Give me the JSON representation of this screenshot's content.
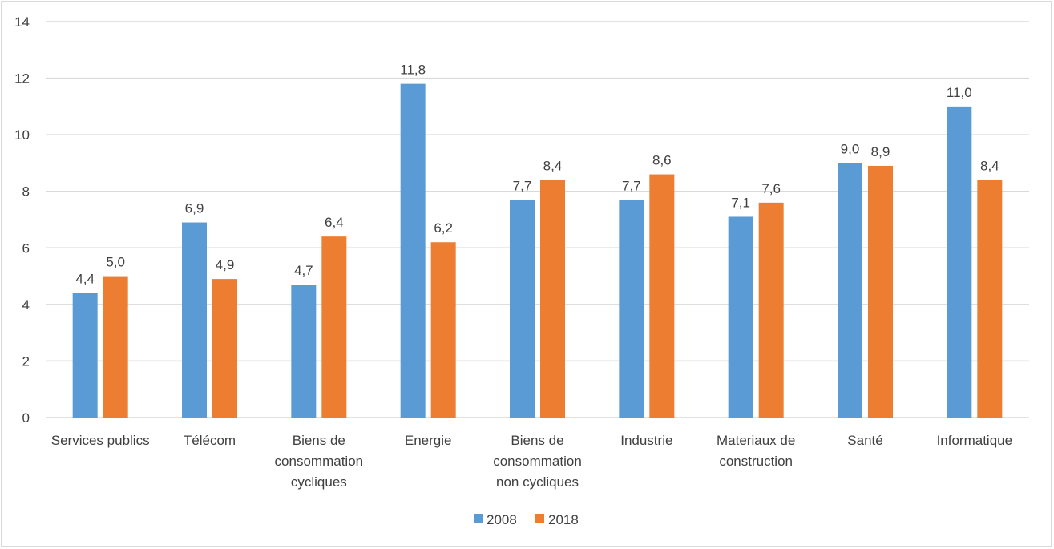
{
  "chart_data": {
    "type": "bar",
    "title": "",
    "xlabel": "",
    "ylabel": "",
    "ylim": [
      0,
      14
    ],
    "yticks": [
      0,
      2,
      4,
      6,
      8,
      10,
      12,
      14
    ],
    "grid": true,
    "legend_position": "bottom",
    "categories": [
      [
        "Services publics"
      ],
      [
        "Télécom"
      ],
      [
        "Biens de",
        "consommation",
        "cycliques"
      ],
      [
        "Energie"
      ],
      [
        "Biens de",
        "consommation",
        "non cycliques"
      ],
      [
        "Industrie"
      ],
      [
        "Materiaux de",
        "construction"
      ],
      [
        "Santé"
      ],
      [
        "Informatique"
      ]
    ],
    "series": [
      {
        "name": "2008",
        "color": "#5b9bd5",
        "values": [
          4.4,
          6.9,
          4.7,
          11.8,
          7.7,
          7.7,
          7.1,
          9.0,
          11.0
        ],
        "labels": [
          "4,4",
          "6,9",
          "4,7",
          "11,8",
          "7,7",
          "7,7",
          "7,1",
          "9,0",
          "11,0"
        ]
      },
      {
        "name": "2018",
        "color": "#ed7d31",
        "values": [
          5.0,
          4.9,
          6.4,
          6.2,
          8.4,
          8.6,
          7.6,
          8.9,
          8.4
        ],
        "labels": [
          "5,0",
          "4,9",
          "6,4",
          "6,2",
          "8,4",
          "8,6",
          "7,6",
          "8,9",
          "8,4"
        ]
      }
    ]
  }
}
